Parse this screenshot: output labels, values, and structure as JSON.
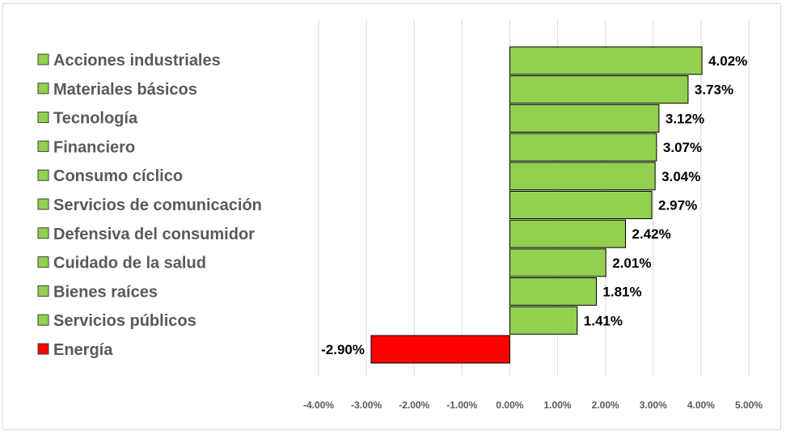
{
  "chart_data": {
    "type": "bar",
    "orientation": "horizontal",
    "categories": [
      "Acciones industriales",
      "Materiales básicos",
      "Tecnología",
      "Financiero",
      "Consumo cíclico",
      "Servicios de comunicación",
      "Defensiva del consumidor",
      "Cuidado de la salud",
      "Bienes raíces",
      "Servicios públicos",
      "Energía"
    ],
    "values": [
      4.02,
      3.73,
      3.12,
      3.07,
      3.04,
      2.97,
      2.42,
      2.01,
      1.81,
      1.41,
      -2.9
    ],
    "data_labels": [
      "4.02%",
      "3.73%",
      "3.12%",
      "3.07%",
      "3.04%",
      "2.97%",
      "2.42%",
      "2.01%",
      "1.81%",
      "1.41%",
      "-2.90%"
    ],
    "colors": [
      "#92d050",
      "#92d050",
      "#92d050",
      "#92d050",
      "#92d050",
      "#92d050",
      "#92d050",
      "#92d050",
      "#92d050",
      "#92d050",
      "#ff0000"
    ],
    "xlim": [
      -4,
      5
    ],
    "x_ticks": [
      -4,
      -3,
      -2,
      -1,
      0,
      1,
      2,
      3,
      4,
      5
    ],
    "x_tick_labels": [
      "-4.00%",
      "-3.00%",
      "-2.00%",
      "-1.00%",
      "0.00%",
      "1.00%",
      "2.00%",
      "3.00%",
      "4.00%",
      "5.00%"
    ],
    "grid": "vertical",
    "legend": "left",
    "title": "",
    "xlabel": "",
    "ylabel": ""
  }
}
